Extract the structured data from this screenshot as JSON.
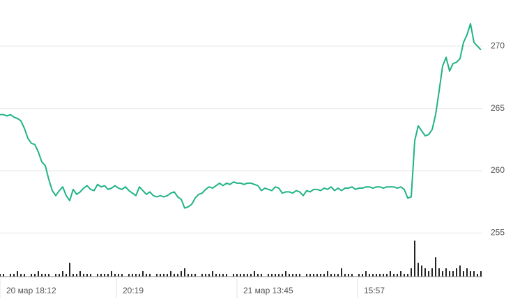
{
  "chart_data": {
    "type": "line",
    "ylim": [
      251.5,
      273.7
    ],
    "yticks": [
      255,
      260,
      265,
      270
    ],
    "grid": true,
    "xlim": [
      0,
      138.4
    ],
    "xticks": [
      {
        "value": 0,
        "label": "20 мар 18:12"
      },
      {
        "value": 33.4,
        "label": "20:19"
      },
      {
        "value": 68,
        "label": "21 мар 13:45"
      },
      {
        "value": 102.6,
        "label": "15:57"
      }
    ],
    "y2lim": [
      0,
      100
    ],
    "series": [
      {
        "color": "#1fb386",
        "values": [
          264.5,
          264.5,
          264.4,
          264.5,
          264.3,
          264.2,
          264.0,
          263.4,
          262.6,
          262.2,
          262.1,
          261.5,
          260.7,
          260.4,
          259.3,
          258.4,
          258.0,
          258.4,
          258.7,
          258.0,
          257.6,
          258.5,
          258.1,
          258.3,
          258.6,
          258.8,
          258.5,
          258.4,
          258.9,
          258.7,
          258.8,
          258.5,
          258.6,
          258.8,
          258.6,
          258.5,
          258.7,
          258.4,
          258.2,
          258.0,
          258.7,
          258.4,
          258.1,
          258.3,
          258.0,
          257.9,
          258.0,
          257.9,
          258.0,
          258.2,
          258.3,
          257.9,
          257.7,
          257.0,
          257.1,
          257.3,
          257.8,
          258.1,
          258.2,
          258.5,
          258.7,
          258.6,
          258.8,
          259.0,
          258.8,
          259.0,
          258.9,
          259.1,
          259.0,
          259.0,
          258.9,
          259.0,
          259.0,
          258.9,
          258.8,
          258.4,
          258.6,
          258.5,
          258.4,
          258.7,
          258.6,
          258.2,
          258.3,
          258.3,
          258.2,
          258.4,
          258.3,
          258.0,
          258.4,
          258.3,
          258.5,
          258.5,
          258.4,
          258.6,
          258.5,
          258.7,
          258.4,
          258.6,
          258.4,
          258.6,
          258.6,
          258.7,
          258.5,
          258.6,
          258.6,
          258.7,
          258.7,
          258.6,
          258.7,
          258.7,
          258.6,
          258.7,
          258.7,
          258.7,
          258.6,
          258.7,
          258.5,
          257.8,
          257.9,
          262.4,
          263.6,
          263.2,
          262.8,
          262.9,
          263.3,
          264.5,
          266.4,
          268.4,
          269.1,
          268.0,
          268.6,
          268.7,
          269.0,
          270.3,
          270.9,
          271.8,
          270.3,
          270.0,
          269.7
        ]
      },
      {
        "type": "bar",
        "axis": "y2",
        "color": "#222222",
        "values": [
          1,
          1,
          0,
          1,
          1,
          2,
          1,
          1,
          0,
          1,
          1,
          2,
          1,
          1,
          1,
          0,
          1,
          1,
          2,
          1,
          5,
          1,
          1,
          2,
          1,
          1,
          1,
          0,
          1,
          1,
          1,
          1,
          2,
          1,
          1,
          1,
          0,
          1,
          1,
          1,
          1,
          2,
          1,
          1,
          0,
          1,
          1,
          1,
          1,
          2,
          1,
          1,
          2,
          3,
          1,
          1,
          1,
          0,
          1,
          1,
          1,
          2,
          1,
          1,
          1,
          1,
          0,
          1,
          1,
          1,
          1,
          1,
          1,
          2,
          1,
          1,
          0,
          1,
          1,
          1,
          1,
          1,
          2,
          1,
          1,
          1,
          1,
          0,
          1,
          1,
          1,
          1,
          1,
          1,
          2,
          1,
          1,
          1,
          3,
          1,
          1,
          1,
          0,
          1,
          1,
          2,
          1,
          1,
          1,
          1,
          1,
          1,
          2,
          1,
          1,
          2,
          1,
          1,
          3,
          13,
          5,
          4,
          3,
          2,
          3,
          7,
          3,
          2,
          3,
          2,
          2,
          3,
          4,
          2,
          3,
          2,
          2,
          1,
          2
        ]
      }
    ]
  }
}
